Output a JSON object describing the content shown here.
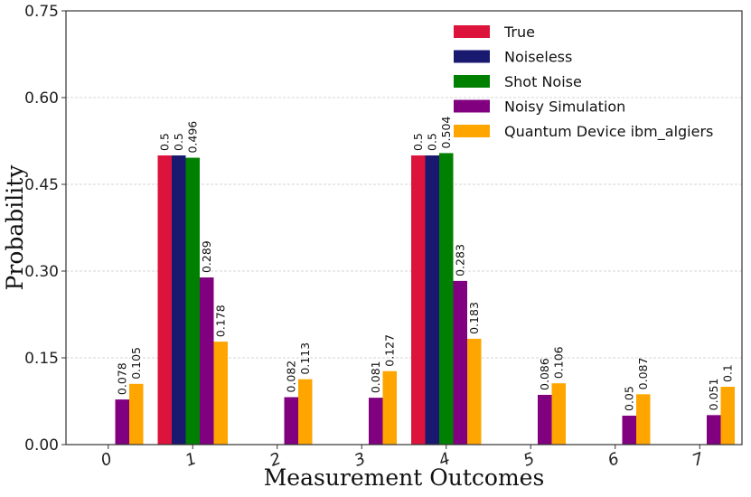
{
  "chart_data": {
    "type": "bar",
    "title": "",
    "xlabel": "Measurement Outcomes",
    "ylabel": "Probability",
    "ylim": [
      0,
      0.75
    ],
    "yticks": [
      "0.00",
      "0.15",
      "0.30",
      "0.45",
      "0.60",
      "0.75"
    ],
    "categories": [
      "0",
      "1",
      "2",
      "3",
      "4",
      "5",
      "6",
      "7"
    ],
    "grid": "horizontal dashed",
    "legend_position": "top-right",
    "series": [
      {
        "name": "True",
        "color": "#dc143c",
        "values": [
          0,
          0.5,
          0,
          0,
          0.5,
          0,
          0,
          0
        ],
        "labels": [
          "",
          "0.5",
          "",
          "",
          "0.5",
          "",
          "",
          ""
        ]
      },
      {
        "name": "Noiseless",
        "color": "#191970",
        "values": [
          0,
          0.5,
          0,
          0,
          0.5,
          0,
          0,
          0
        ],
        "labels": [
          "",
          "0.5",
          "",
          "",
          "0.5",
          "",
          "",
          ""
        ]
      },
      {
        "name": "Shot Noise",
        "color": "#008000",
        "values": [
          0,
          0.496,
          0,
          0,
          0.504,
          0,
          0,
          0
        ],
        "labels": [
          "",
          "0.496",
          "",
          "",
          "0.504",
          "",
          "",
          ""
        ]
      },
      {
        "name": "Noisy Simulation",
        "color": "#800080",
        "values": [
          0.078,
          0.289,
          0.082,
          0.081,
          0.283,
          0.086,
          0.05,
          0.051
        ],
        "labels": [
          "0.078",
          "0.289",
          "0.082",
          "0.081",
          "0.283",
          "0.086",
          "0.05",
          "0.051"
        ]
      },
      {
        "name": "Quantum Device ibm_algiers",
        "color": "#ffa500",
        "values": [
          0.105,
          0.178,
          0.113,
          0.127,
          0.183,
          0.106,
          0.087,
          0.1
        ],
        "labels": [
          "0.105",
          "0.178",
          "0.113",
          "0.127",
          "0.183",
          "0.106",
          "0.087",
          "0.1"
        ]
      }
    ]
  }
}
